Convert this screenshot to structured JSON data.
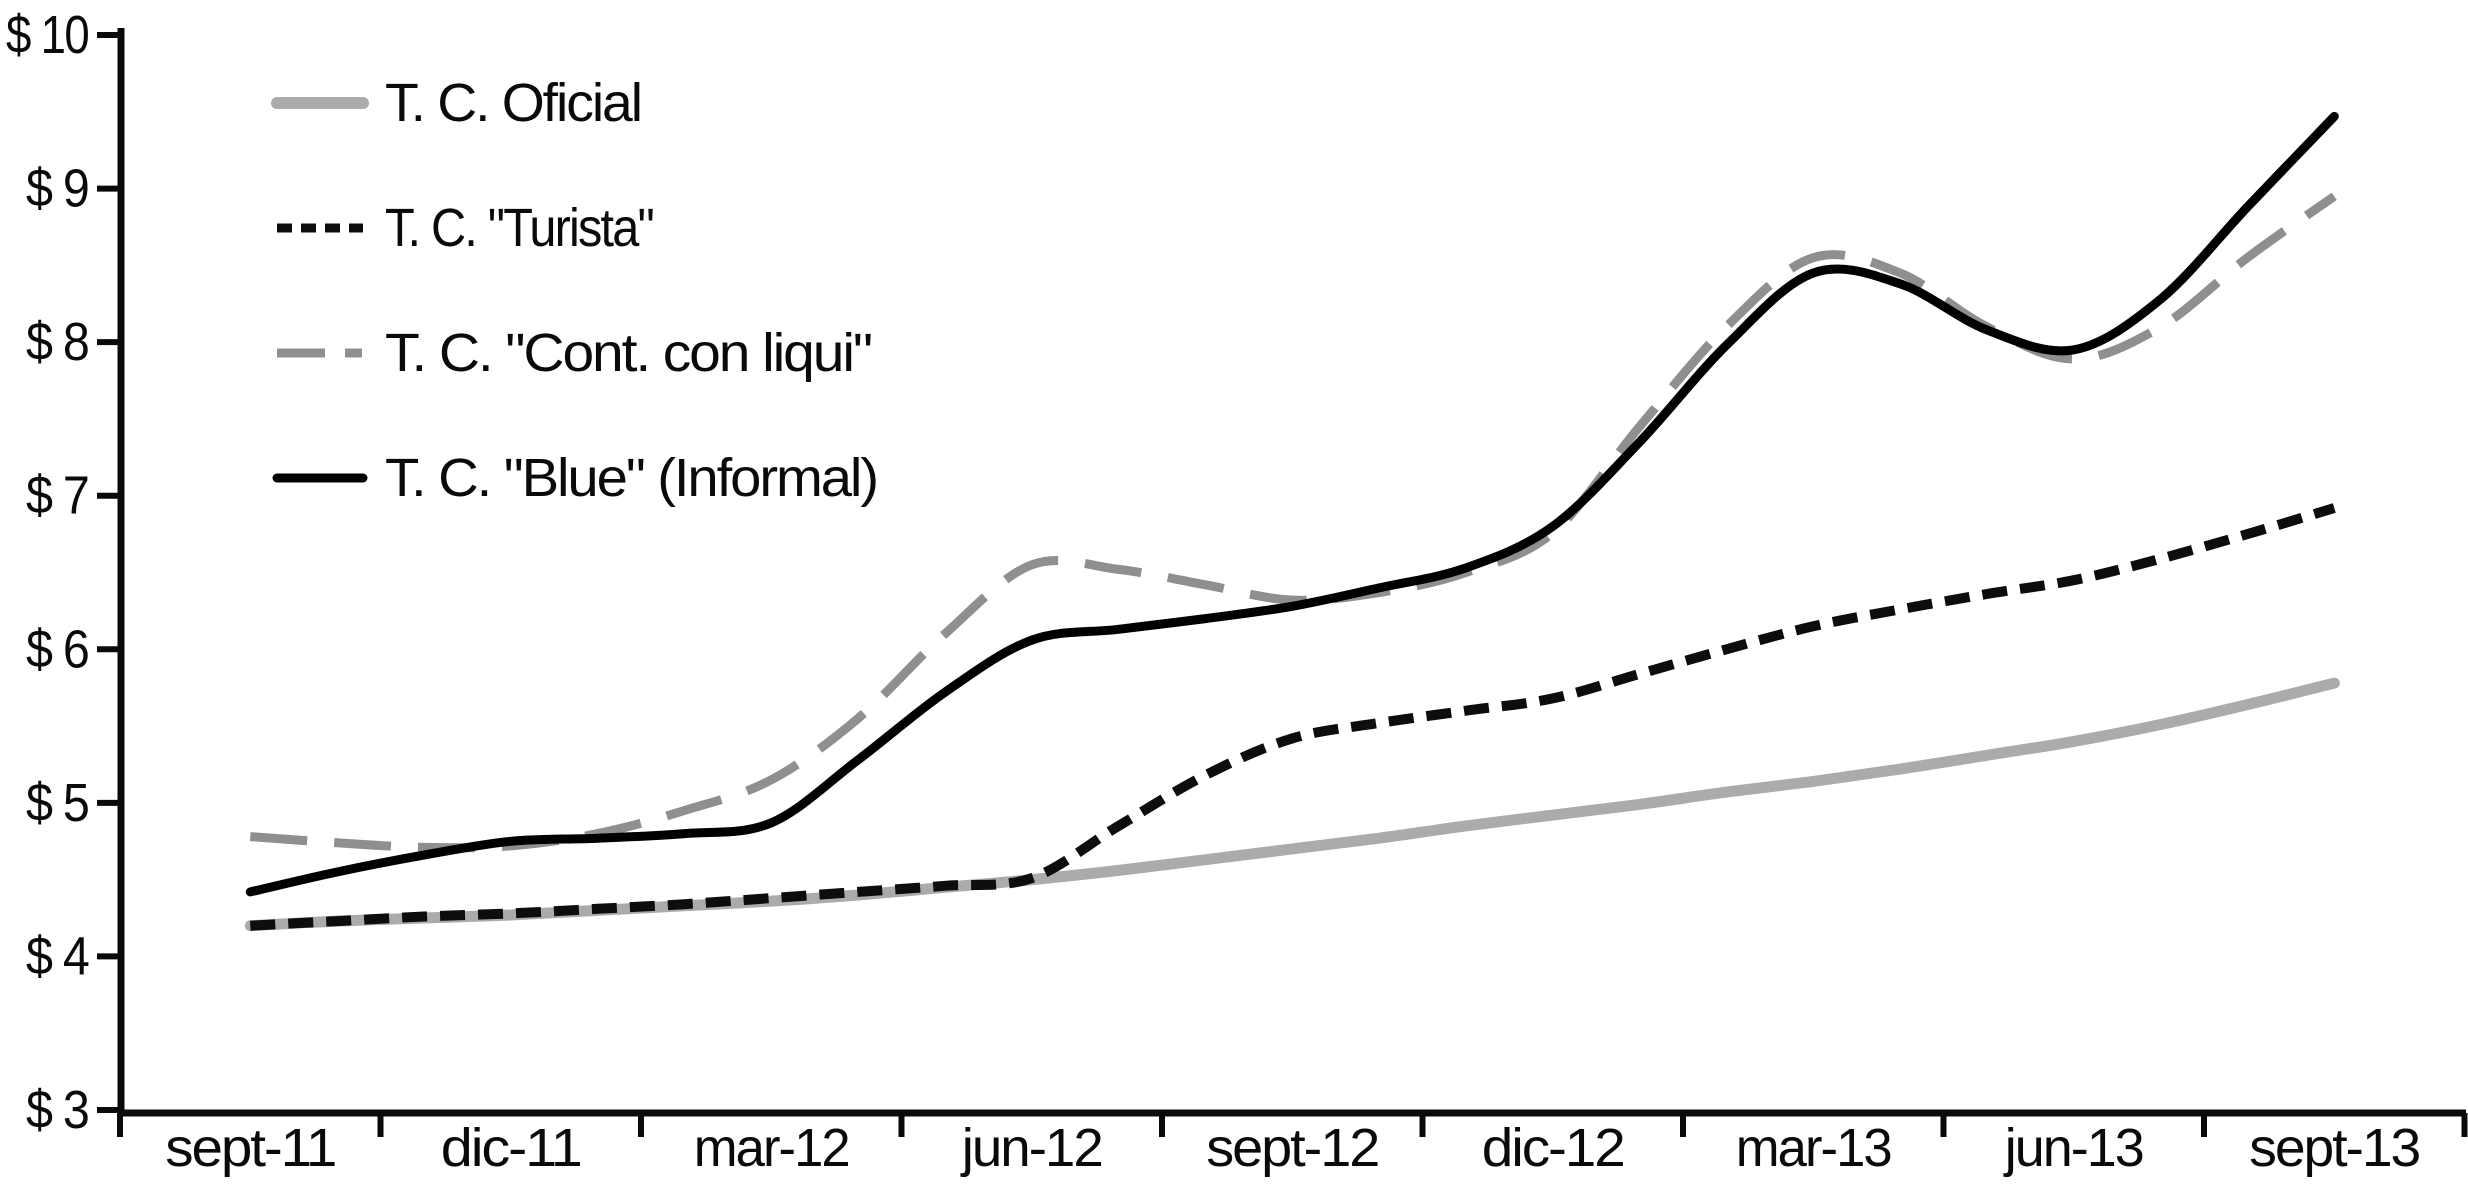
{
  "chart_data": {
    "type": "line",
    "title": "",
    "xlabel": "",
    "ylabel": "",
    "grid": false,
    "legend_position": "top-left",
    "ylim": [
      3,
      10
    ],
    "currency_prefix": "$",
    "y_tick_values": [
      3,
      4,
      5,
      6,
      7,
      8,
      9,
      10
    ],
    "y_tick_labels": [
      "$ 3",
      "$ 4",
      "$ 5",
      "$ 6",
      "$ 7",
      "$ 8",
      "$ 9",
      "$ 10"
    ],
    "x_tick_labels": [
      "sept-11",
      "dic-11",
      "mar-12",
      "jun-12",
      "sept-12",
      "dic-12",
      "mar-13",
      "jun-13",
      "sept-13"
    ],
    "x_unit": "months from sept-2011 to sept-2013, monthly samples",
    "x_months": [
      0,
      1,
      2,
      3,
      4,
      5,
      6,
      7,
      8,
      9,
      10,
      11,
      12,
      13,
      14,
      15,
      16,
      17,
      18,
      19,
      20,
      21,
      22,
      23,
      24
    ],
    "series": [
      {
        "name": "T. C. Oficial",
        "color": "#ababab",
        "line_style": "solid",
        "width": 11,
        "dash": null,
        "legend_dash": null,
        "values": [
          4.2,
          4.23,
          4.25,
          4.27,
          4.3,
          4.33,
          4.36,
          4.4,
          4.45,
          4.5,
          4.56,
          4.63,
          4.7,
          4.77,
          4.85,
          4.92,
          4.99,
          5.07,
          5.14,
          5.22,
          5.31,
          5.4,
          5.51,
          5.64,
          5.78
        ]
      },
      {
        "name": "T. C. \"Turista\"",
        "color": "#0d0d0d",
        "line_style": "dashed",
        "width": 10,
        "dash": [
          25,
          13
        ],
        "legend_dash": [
          15,
          9
        ],
        "values": [
          4.2,
          4.23,
          4.26,
          4.28,
          4.31,
          4.34,
          4.38,
          4.42,
          4.46,
          4.51,
          4.85,
          5.18,
          5.42,
          5.52,
          5.6,
          5.68,
          5.84,
          6.0,
          6.15,
          6.26,
          6.36,
          6.45,
          6.59,
          6.75,
          6.92
        ]
      },
      {
        "name": "T. C. \"Cont. con liqui\"",
        "color": "#8f8f8f",
        "line_style": "long-dash",
        "width": 9,
        "dash": [
          57,
          27
        ],
        "legend_dash": [
          48,
          20,
          17,
          20
        ],
        "values": [
          4.78,
          4.74,
          4.71,
          4.72,
          4.8,
          4.95,
          5.15,
          5.55,
          6.1,
          6.55,
          6.52,
          6.42,
          6.32,
          6.37,
          6.5,
          6.76,
          7.45,
          8.1,
          8.55,
          8.45,
          8.1,
          7.89,
          8.1,
          8.55,
          8.95
        ]
      },
      {
        "name": "T. C. \"Blue\" (Informal)",
        "color": "#000000",
        "line_style": "solid",
        "width": 9,
        "dash": null,
        "legend_dash": null,
        "values": [
          4.42,
          4.55,
          4.66,
          4.75,
          4.77,
          4.8,
          4.87,
          5.28,
          5.72,
          6.06,
          6.13,
          6.2,
          6.28,
          6.4,
          6.53,
          6.8,
          7.35,
          7.98,
          8.45,
          8.38,
          8.08,
          7.95,
          8.28,
          8.88,
          9.47
        ]
      }
    ]
  }
}
